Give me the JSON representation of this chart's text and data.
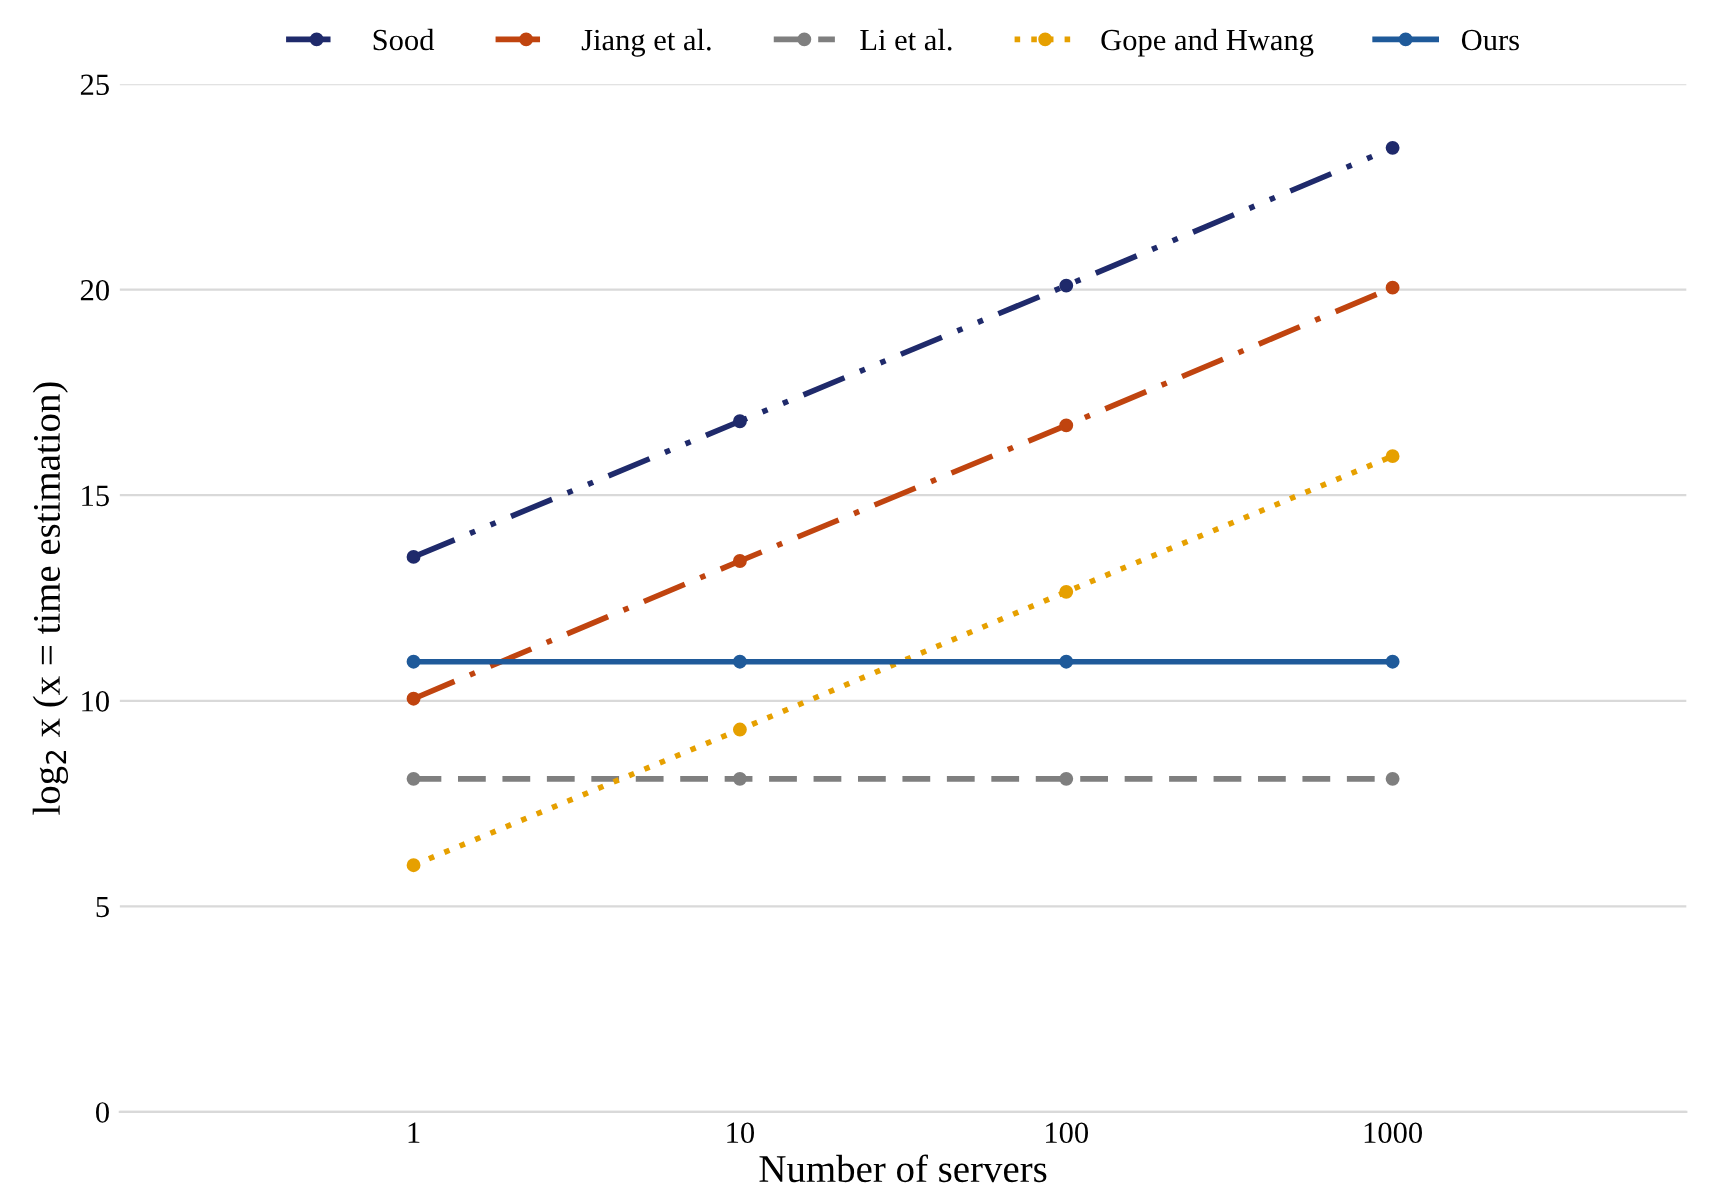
{
  "chart_data": {
    "type": "line",
    "xlabel": "Number of servers",
    "ylabel": "log$_{2}$ x (x = time estimation)",
    "categories": [
      "1",
      "10",
      "100",
      "1000"
    ],
    "series": [
      {
        "name": "Sood",
        "color": "#1f2a6b",
        "line_style": "dashdotdot",
        "values": [
          13.5,
          16.8,
          20.1,
          23.45
        ]
      },
      {
        "name": "Jiang et al.",
        "color": "#c0440f",
        "line_style": "dashdot",
        "values": [
          10.05,
          13.4,
          16.7,
          20.05
        ]
      },
      {
        "name": "Li et al.",
        "color": "#7f7f7f",
        "line_style": "dashed",
        "values": [
          8.1,
          8.1,
          8.1,
          8.1
        ]
      },
      {
        "name": "Gope and Hwang",
        "color": "#e6a000",
        "line_style": "dotted",
        "values": [
          6.0,
          9.3,
          12.65,
          15.95
        ]
      },
      {
        "name": "Ours",
        "color": "#1f5a9a",
        "line_style": "solid",
        "values": [
          10.95,
          10.95,
          10.95,
          10.95
        ]
      }
    ],
    "ylim": [
      0,
      25
    ],
    "yticks": [
      0,
      5,
      10,
      15,
      20,
      25
    ],
    "grid": "y",
    "legend": "top",
    "marker": "circle"
  }
}
